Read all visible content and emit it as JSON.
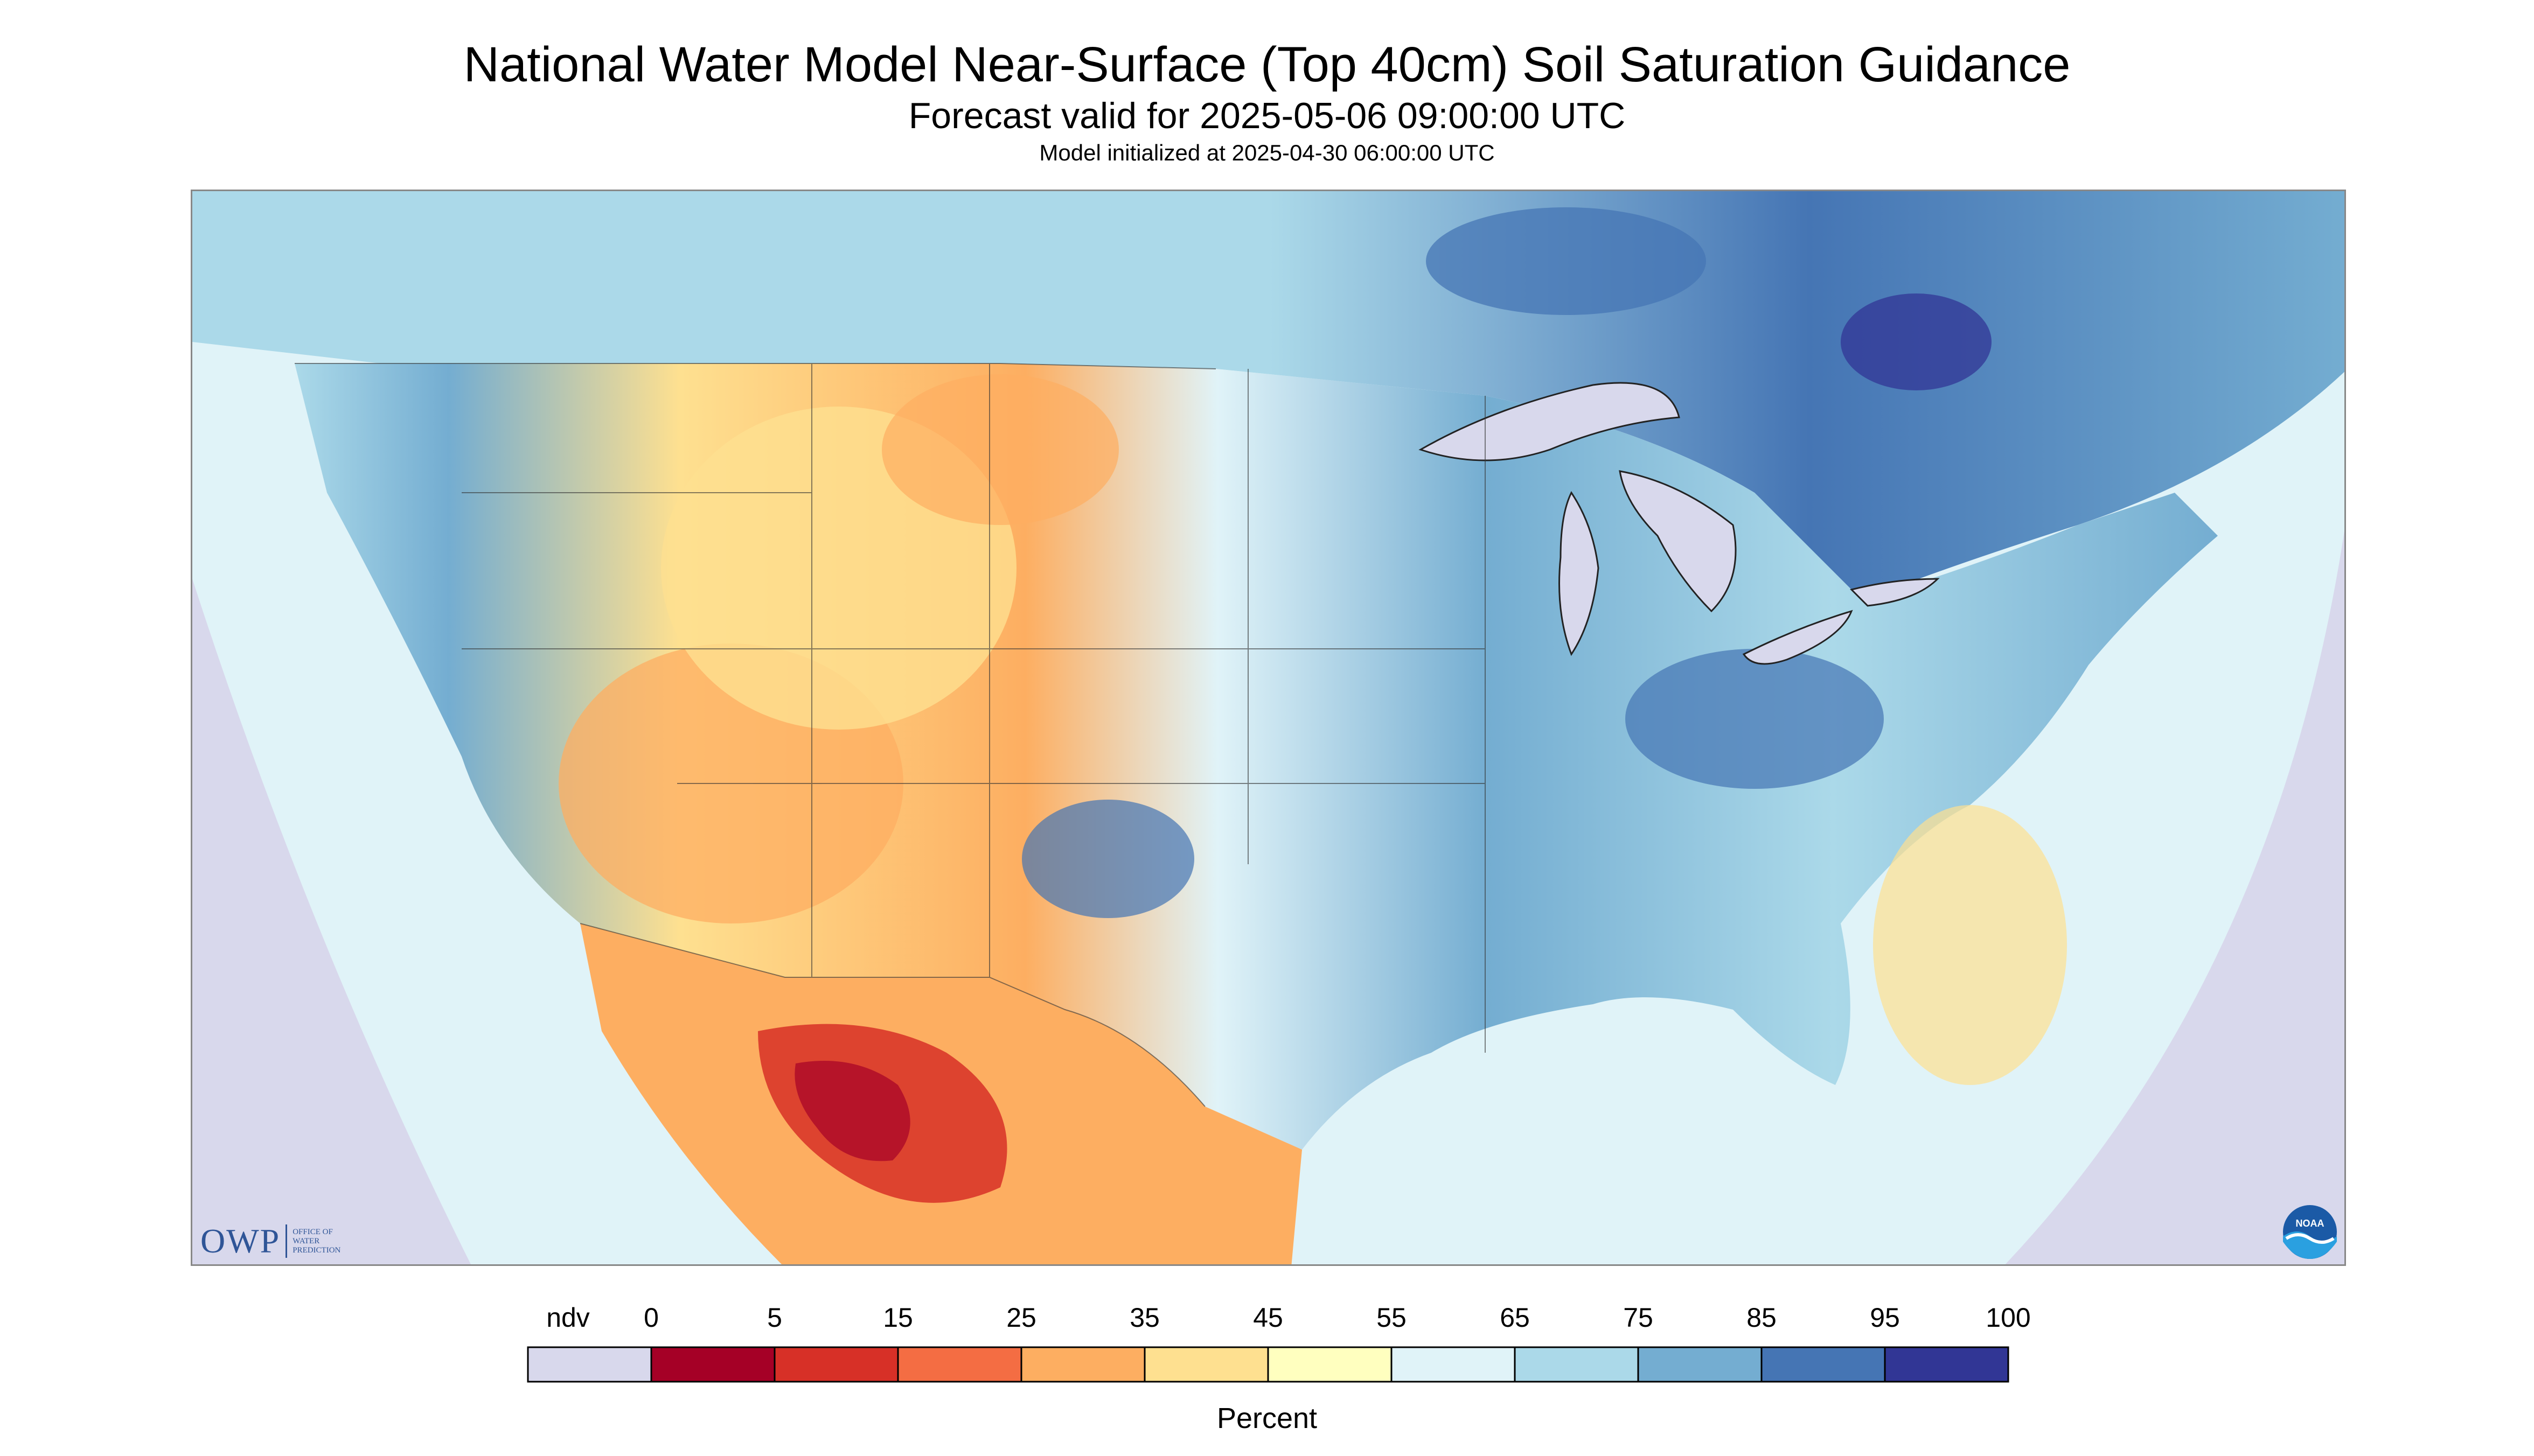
{
  "title": "National Water Model Near-Surface (Top 40cm) Soil Saturation Guidance",
  "subtitle": "Forecast valid for 2025-05-06 09:00:00 UTC",
  "init_line": "Model initialized at 2025-04-30 06:00:00 UTC",
  "legend": {
    "title": "Percent",
    "ndv_label": "ndv",
    "ticks": [
      "0",
      "5",
      "15",
      "25",
      "35",
      "45",
      "55",
      "65",
      "75",
      "85",
      "95",
      "100"
    ],
    "colors": [
      "#d8d8ec",
      "#a50026",
      "#d73027",
      "#f46d43",
      "#fdae61",
      "#fee090",
      "#ffffbf",
      "#e0f3f8",
      "#abd9e9",
      "#74add1",
      "#4575b4",
      "#313695"
    ]
  },
  "logos": {
    "owp_text": "OWP",
    "owp_sub": [
      "OFFICE OF",
      "WATER",
      "PREDICTION"
    ],
    "noaa_text": "NOAA"
  }
}
